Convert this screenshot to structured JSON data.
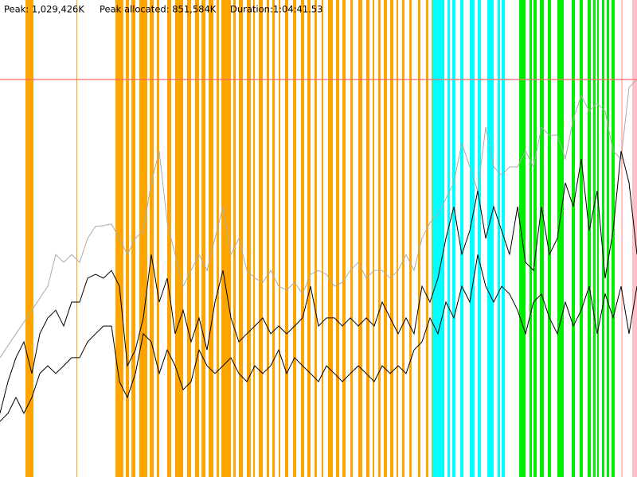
{
  "chart_data": {
    "type": "line",
    "header": [
      "Peak: 1,029,426K",
      "Peak allocated: 851,584K",
      "Duration:1:04:41.53"
    ],
    "peak": 1029426,
    "peak_color": "#ff6666",
    "xlim": [
      0,
      80
    ],
    "ylim": [
      0,
      1235311
    ],
    "stripes": [
      {
        "color": "#ffa500",
        "ranges": [
          [
            3.2,
            4.2
          ],
          [
            9.6,
            9.7
          ],
          [
            14.5,
            15.5
          ],
          [
            15.8,
            16.2
          ],
          [
            16.5,
            17
          ],
          [
            17.5,
            18.5
          ],
          [
            18.8,
            19.3
          ],
          [
            19.7,
            20
          ],
          [
            21,
            21.5
          ],
          [
            22,
            23
          ],
          [
            23.5,
            24
          ],
          [
            24.5,
            25
          ],
          [
            25.3,
            25.8
          ],
          [
            26.2,
            26.8
          ],
          [
            27.2,
            27.5
          ],
          [
            27.8,
            29
          ],
          [
            29.3,
            29.6
          ],
          [
            30,
            30.5
          ],
          [
            31,
            31.5
          ],
          [
            31.8,
            32
          ],
          [
            32.5,
            33
          ],
          [
            33.5,
            33.8
          ],
          [
            34.2,
            34.5
          ],
          [
            35,
            35.2
          ],
          [
            35.8,
            36.2
          ],
          [
            36.8,
            37.2
          ],
          [
            37.8,
            38.2
          ],
          [
            38.6,
            39
          ],
          [
            39.5,
            39.8
          ],
          [
            40.4,
            40.6
          ],
          [
            41.2,
            41.8
          ],
          [
            42.2,
            42.6
          ],
          [
            43,
            43.4
          ],
          [
            44,
            44.3
          ],
          [
            45,
            45.5
          ],
          [
            46,
            46.4
          ],
          [
            46.8,
            47
          ],
          [
            47.5,
            47.8
          ],
          [
            48.2,
            48.6
          ],
          [
            49,
            49.4
          ],
          [
            49.8,
            50
          ],
          [
            50.5,
            50.8
          ],
          [
            51.4,
            51.7
          ],
          [
            52.5,
            52.8
          ],
          [
            53.5,
            53.8
          ],
          [
            54.2,
            54.4
          ]
        ]
      },
      {
        "color": "#00ffff",
        "ranges": [
          [
            54.3,
            55.8
          ],
          [
            56.2,
            56.5
          ],
          [
            56.8,
            57.2
          ],
          [
            57.8,
            58.2
          ],
          [
            59,
            59.6
          ],
          [
            60,
            60.4
          ],
          [
            61.2,
            62
          ],
          [
            62.5,
            62.8
          ],
          [
            63,
            63.4
          ]
        ]
      },
      {
        "color": "#00ee00",
        "ranges": [
          [
            65.2,
            66
          ],
          [
            66.5,
            66.8
          ],
          [
            67,
            67.4
          ],
          [
            67.8,
            68.3
          ],
          [
            68.8,
            69.2
          ],
          [
            70,
            70.8
          ],
          [
            71.8,
            72.2
          ],
          [
            72.8,
            73.2
          ],
          [
            73.8,
            74.2
          ],
          [
            74.5,
            74.8
          ],
          [
            75,
            75.2
          ],
          [
            75.6,
            75.9
          ],
          [
            76.2,
            76.5
          ],
          [
            76.8,
            77.2
          ]
        ]
      },
      {
        "color": "#ffc0cb",
        "ranges": [
          [
            78,
            78.2
          ],
          [
            79.4,
            80
          ]
        ]
      }
    ],
    "series": [
      {
        "color": "#aaaaaa",
        "values": [
          309000,
          340000,
          371000,
          401000,
          432000,
          463000,
          494000,
          576000,
          556000,
          576000,
          556000,
          618000,
          649000,
          651000,
          655000,
          618000,
          576000,
          618000,
          638000,
          762000,
          844000,
          659000,
          576000,
          494000,
          535000,
          576000,
          535000,
          618000,
          700000,
          576000,
          618000,
          535000,
          515000,
          504000,
          535000,
          494000,
          484000,
          504000,
          474000,
          525000,
          535000,
          525000,
          494000,
          504000,
          535000,
          556000,
          515000,
          535000,
          535000,
          515000,
          535000,
          576000,
          535000,
          618000,
          659000,
          679000,
          721000,
          762000,
          865000,
          803000,
          741000,
          906000,
          803000,
          782000,
          803000,
          803000,
          844000,
          803000,
          906000,
          885000,
          885000,
          824000,
          927000,
          988000,
          947000,
          968000,
          947000,
          844000,
          824000,
          1009000,
          1029000
        ]
      },
      {
        "color": "#000000",
        "values": [
          165000,
          247000,
          309000,
          350000,
          268000,
          371000,
          412000,
          432000,
          391000,
          453000,
          453000,
          515000,
          525000,
          515000,
          535000,
          494000,
          288000,
          329000,
          412000,
          576000,
          453000,
          515000,
          371000,
          432000,
          350000,
          412000,
          329000,
          453000,
          535000,
          412000,
          350000,
          371000,
          391000,
          412000,
          371000,
          391000,
          371000,
          391000,
          412000,
          494000,
          391000,
          412000,
          412000,
          391000,
          412000,
          391000,
          412000,
          391000,
          453000,
          412000,
          371000,
          412000,
          371000,
          494000,
          453000,
          515000,
          618000,
          700000,
          576000,
          638000,
          741000,
          618000,
          700000,
          638000,
          576000,
          700000,
          556000,
          535000,
          700000,
          576000,
          618000,
          762000,
          700000,
          824000,
          638000,
          741000,
          515000,
          638000,
          844000,
          762000,
          576000
        ]
      },
      {
        "color": "#000000",
        "values": [
          144000,
          165000,
          206000,
          165000,
          206000,
          268000,
          288000,
          268000,
          288000,
          309000,
          309000,
          350000,
          371000,
          391000,
          391000,
          247000,
          206000,
          268000,
          371000,
          350000,
          268000,
          329000,
          288000,
          226000,
          247000,
          329000,
          288000,
          268000,
          288000,
          309000,
          268000,
          247000,
          288000,
          268000,
          288000,
          329000,
          268000,
          309000,
          288000,
          268000,
          247000,
          288000,
          268000,
          247000,
          268000,
          288000,
          268000,
          247000,
          288000,
          268000,
          288000,
          268000,
          329000,
          350000,
          412000,
          371000,
          453000,
          412000,
          494000,
          453000,
          576000,
          494000,
          453000,
          494000,
          474000,
          432000,
          371000,
          453000,
          474000,
          412000,
          371000,
          453000,
          391000,
          432000,
          494000,
          371000,
          474000,
          412000,
          494000,
          371000,
          494000
        ]
      }
    ]
  }
}
